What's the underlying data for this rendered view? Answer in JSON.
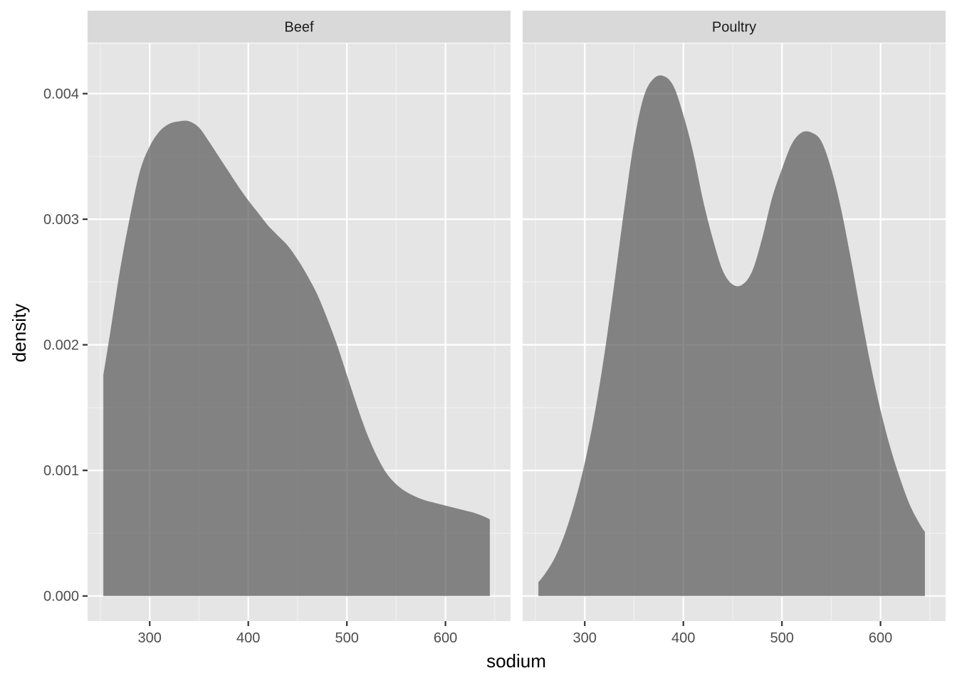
{
  "chart_data": {
    "type": "area",
    "xlabel": "sodium",
    "ylabel": "density",
    "xlim": [
      237,
      666
    ],
    "ylim": [
      -0.0002,
      0.0044
    ],
    "x_ticks": [
      300,
      400,
      500,
      600
    ],
    "y_ticks": [
      0.0,
      0.001,
      0.002,
      0.003,
      0.004
    ],
    "y_tick_labels": [
      "0.000",
      "0.001",
      "0.002",
      "0.003",
      "0.004"
    ],
    "grid": true,
    "fill_color": "#595959",
    "fill_opacity": 0.7,
    "panels": [
      {
        "name": "Beef",
        "x": [
          253,
          260,
          270,
          280,
          290,
          300,
          310,
          320,
          330,
          340,
          350,
          360,
          370,
          380,
          390,
          400,
          410,
          420,
          430,
          440,
          450,
          460,
          470,
          480,
          490,
          500,
          510,
          520,
          530,
          540,
          550,
          560,
          570,
          580,
          590,
          600,
          610,
          620,
          630,
          640,
          645
        ],
        "y": [
          0.00176,
          0.0021,
          0.0026,
          0.00302,
          0.00338,
          0.00358,
          0.0037,
          0.00376,
          0.00378,
          0.00378,
          0.00373,
          0.00362,
          0.0035,
          0.00338,
          0.00326,
          0.00315,
          0.00305,
          0.00295,
          0.00287,
          0.00279,
          0.00268,
          0.00255,
          0.0024,
          0.00221,
          0.002,
          0.00176,
          0.00152,
          0.0013,
          0.00112,
          0.00098,
          0.00089,
          0.00083,
          0.00079,
          0.00076,
          0.00074,
          0.00072,
          0.0007,
          0.00068,
          0.00066,
          0.00063,
          0.00061
        ]
      },
      {
        "name": "Poultry",
        "x": [
          253,
          260,
          270,
          280,
          290,
          300,
          310,
          320,
          330,
          340,
          350,
          360,
          370,
          380,
          390,
          400,
          410,
          420,
          430,
          440,
          450,
          460,
          470,
          480,
          490,
          500,
          510,
          520,
          530,
          540,
          550,
          560,
          570,
          580,
          590,
          600,
          610,
          620,
          630,
          640,
          645
        ],
        "y": [
          0.00011,
          0.00018,
          0.00031,
          0.0005,
          0.00075,
          0.00106,
          0.00145,
          0.00193,
          0.00249,
          0.00308,
          0.00362,
          0.00398,
          0.00412,
          0.00414,
          0.00406,
          0.00383,
          0.00353,
          0.00315,
          0.00284,
          0.00259,
          0.00248,
          0.00248,
          0.00259,
          0.00285,
          0.00317,
          0.0034,
          0.0036,
          0.00369,
          0.00369,
          0.00362,
          0.0034,
          0.00308,
          0.00268,
          0.00225,
          0.00184,
          0.00148,
          0.00118,
          0.00093,
          0.00072,
          0.00057,
          0.00051
        ]
      }
    ]
  }
}
